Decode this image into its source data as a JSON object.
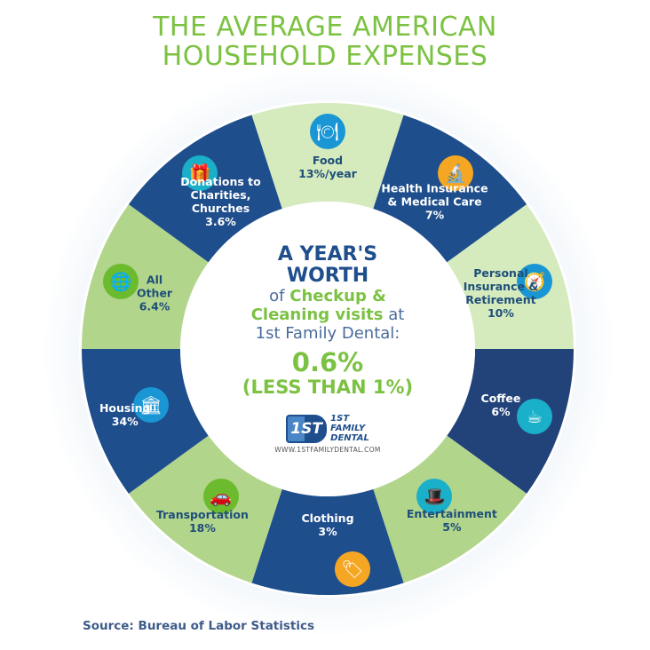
{
  "title": {
    "line1": "THE AVERAGE AMERICAN",
    "line2": "HOUSEHOLD EXPENSES"
  },
  "colors": {
    "title_green": "#7cc242",
    "navy": "#1f4e8c",
    "dark_navy": "#22427a",
    "light_green": "#d5ebbe",
    "mid_green": "#b2d58c",
    "center_white": "#ffffff"
  },
  "chart_data": {
    "type": "pie",
    "subtype": "donut (equal-width segments, labeled with percentages)",
    "title": "THE AVERAGE AMERICAN HOUSEHOLD EXPENSES",
    "source": "Bureau of Labor Statistics",
    "segments": [
      {
        "label": "Food",
        "value_text": "13%/year",
        "value": 13,
        "icon": "plate-cutlery-icon",
        "icon_color": "#1a96d4",
        "fill": "#d5ebbe",
        "text": "dark"
      },
      {
        "label": "Health Insurance & Medical Care",
        "value_text": "7%",
        "value": 7,
        "icon": "microscope-icon",
        "icon_color": "#f5a623",
        "fill": "#1f4e8c",
        "text": "light"
      },
      {
        "label": "Personal Insurance & Retirement",
        "value_text": "10%",
        "value": 10,
        "icon": "compass-map-icon",
        "icon_color": "#1a96d4",
        "fill": "#d5ebbe",
        "text": "dark"
      },
      {
        "label": "Coffee",
        "value_text": "6%",
        "value": 6,
        "icon": "coffee-cup-icon",
        "icon_color": "#1ab0c9",
        "fill": "#22427a",
        "text": "light"
      },
      {
        "label": "Entertainment",
        "value_text": "5%",
        "value": 5,
        "icon": "magic-hat-icon",
        "icon_color": "#1ab0c9",
        "fill": "#b2d58c",
        "text": "dark"
      },
      {
        "label": "Clothing",
        "value_text": "3%",
        "value": 3,
        "icon": "price-tag-icon",
        "icon_color": "#f5a623",
        "fill": "#1f4e8c",
        "text": "light"
      },
      {
        "label": "Transportation",
        "value_text": "18%",
        "value": 18,
        "icon": "car-icon",
        "icon_color": "#6cbb2e",
        "fill": "#b2d58c",
        "text": "dark"
      },
      {
        "label": "Housing",
        "value_text": "34%",
        "value": 34,
        "icon": "building-icon",
        "icon_color": "#1a96d4",
        "fill": "#1f4e8c",
        "text": "light"
      },
      {
        "label": "All Other",
        "value_text": "6.4%",
        "value": 6.4,
        "icon": "globe-search-icon",
        "icon_color": "#6cbb2e",
        "fill": "#b2d58c",
        "text": "dark"
      },
      {
        "label": "Donations to Charities, Churches",
        "value_text": "3.6%",
        "value": 3.6,
        "icon": "gift-icon",
        "icon_color": "#1ab0c9",
        "fill": "#1f4e8c",
        "text": "light"
      }
    ]
  },
  "segment_labels": [
    [
      "Food",
      "13%/year"
    ],
    [
      "Health Insurance",
      "& Medical Care",
      "7%"
    ],
    [
      "Personal",
      "Insurance &",
      "Retirement",
      "10%"
    ],
    [
      "Coffee",
      "6%"
    ],
    [
      "Entertainment",
      "5%"
    ],
    [
      "Clothing",
      "3%"
    ],
    [
      "Transportation",
      "18%"
    ],
    [
      "Housing",
      "34%"
    ],
    [
      "All",
      "Other",
      "6.4%"
    ],
    [
      "Donations to",
      "Charities,",
      "Churches",
      "3.6%"
    ]
  ],
  "center": {
    "head1": "A YEAR'S",
    "head2": "WORTH",
    "of": "of",
    "checkup": "Checkup &",
    "cleaning": "Cleaning visits",
    "at": "at",
    "practice": "1st Family Dental:",
    "value": "0.6%",
    "less": "(LESS THAN 1%)"
  },
  "logo": {
    "mark": "1ST",
    "line1": "1ST",
    "line2": "FAMILY",
    "line3": "DENTAL",
    "url": "WWW.1STFAMILYDENTAL.COM"
  },
  "source": "Source: Bureau of Labor Statistics"
}
